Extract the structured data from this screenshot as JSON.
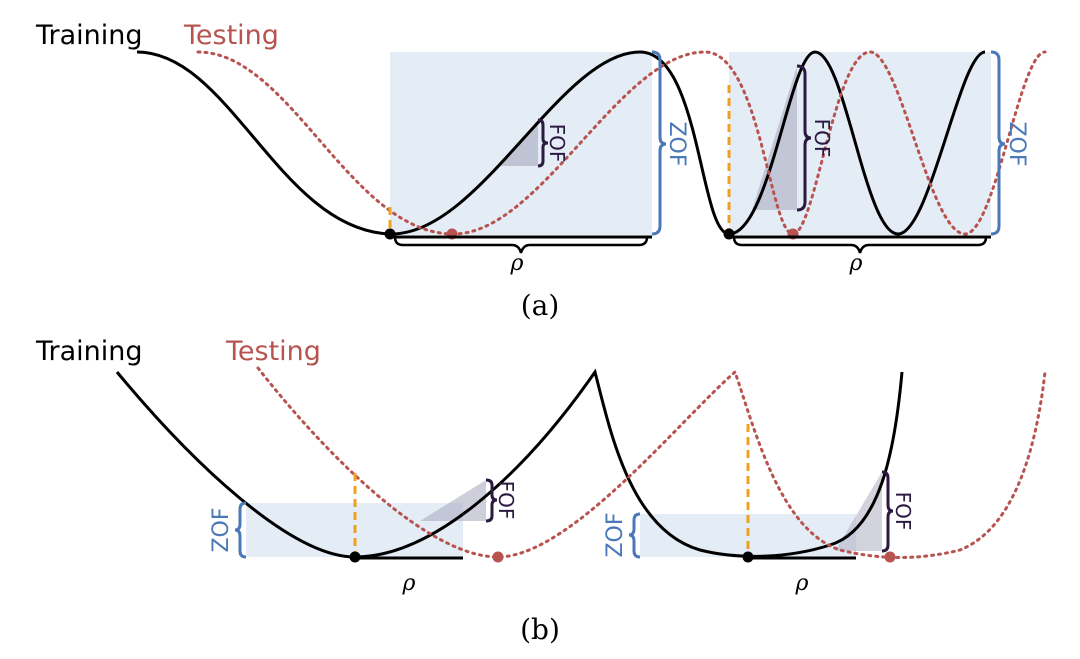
{
  "panel_a": {
    "caption": "(a)",
    "training_label": "Training",
    "testing_label": "Testing",
    "box1": {
      "zof_label": "ZOF",
      "fof_label": "FOF",
      "rho_label": "ρ"
    },
    "box2": {
      "zof_label": "ZOF",
      "fof_label": "FOF",
      "rho_label": "ρ"
    }
  },
  "panel_b": {
    "caption": "(b)",
    "training_label": "Training",
    "testing_label": "Testing",
    "box1": {
      "zof_label": "ZOF",
      "fof_label": "FOF",
      "rho_label": "ρ"
    },
    "box2": {
      "zof_label": "ZOF",
      "fof_label": "FOF",
      "rho_label": "ρ"
    }
  },
  "colors": {
    "training": "#000000",
    "testing": "#b85450",
    "zof": "#4a78b8",
    "fof": "#2a1a40",
    "marker": "#f0a020",
    "box_fill": "#dbe5f1"
  }
}
